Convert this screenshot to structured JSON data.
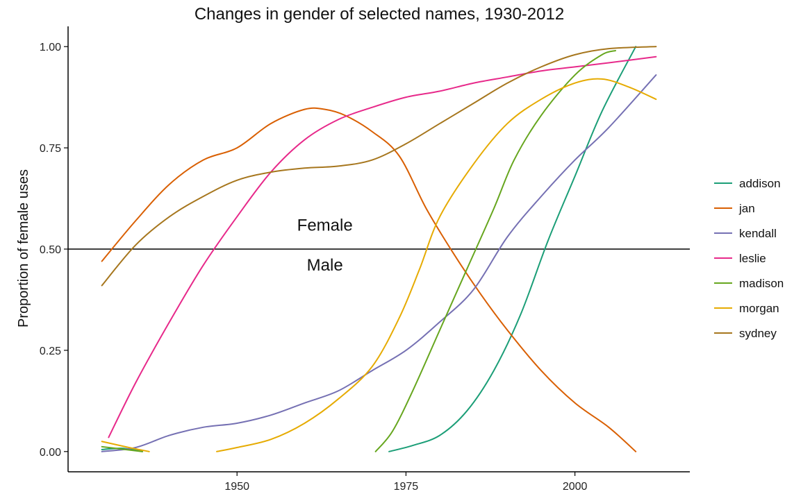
{
  "chart_data": {
    "type": "line",
    "title": "Changes in gender of selected names, 1930-2012",
    "xlabel": "",
    "ylabel": "Proportion of female uses",
    "xlim": [
      1925,
      2017
    ],
    "ylim": [
      -0.05,
      1.05
    ],
    "x_ticks": [
      1950,
      1975,
      2000
    ],
    "x_tick_labels": [
      "1950",
      "1975",
      "2000"
    ],
    "y_ticks": [
      0,
      0.25,
      0.5,
      0.75,
      1.0
    ],
    "y_tick_labels": [
      "0.00",
      "0.25",
      "0.50",
      "0.75",
      "1.00"
    ],
    "grid": false,
    "legend_position": "right",
    "reference_line": {
      "y": 0.5
    },
    "annotations": [
      {
        "text": "Female",
        "x": 1963,
        "y": 0.545
      },
      {
        "text": "Male",
        "x": 1963,
        "y": 0.447
      }
    ],
    "series": [
      {
        "name": "addison",
        "color": "#1b9e77",
        "segments": [
          [
            [
              1930,
              0.005
            ],
            [
              1933,
              0.008
            ],
            [
              1936,
              0.0
            ]
          ],
          [
            [
              1972.5,
              0.0
            ],
            [
              1976,
              0.015
            ],
            [
              1980,
              0.04
            ],
            [
              1984,
              0.1
            ],
            [
              1988,
              0.2
            ],
            [
              1992,
              0.34
            ],
            [
              1996,
              0.52
            ],
            [
              2000,
              0.68
            ],
            [
              2004,
              0.84
            ],
            [
              2009,
              1.0
            ]
          ]
        ]
      },
      {
        "name": "jan",
        "color": "#d95f02",
        "segments": [
          [
            [
              1930,
              0.47
            ],
            [
              1935,
              0.57
            ],
            [
              1940,
              0.66
            ],
            [
              1945,
              0.72
            ],
            [
              1950,
              0.75
            ],
            [
              1955,
              0.81
            ],
            [
              1960,
              0.845
            ],
            [
              1963,
              0.845
            ],
            [
              1966,
              0.83
            ],
            [
              1970,
              0.79
            ],
            [
              1974,
              0.73
            ],
            [
              1978,
              0.6
            ],
            [
              1982,
              0.49
            ],
            [
              1986,
              0.39
            ],
            [
              1990,
              0.3
            ],
            [
              1995,
              0.2
            ],
            [
              2000,
              0.12
            ],
            [
              2005,
              0.06
            ],
            [
              2009,
              0.0
            ]
          ]
        ]
      },
      {
        "name": "kendall",
        "color": "#7570b3",
        "segments": [
          [
            [
              1930,
              0.0
            ],
            [
              1935,
              0.01
            ],
            [
              1940,
              0.04
            ],
            [
              1945,
              0.06
            ],
            [
              1950,
              0.07
            ],
            [
              1955,
              0.09
            ],
            [
              1960,
              0.12
            ],
            [
              1965,
              0.15
            ],
            [
              1970,
              0.2
            ],
            [
              1975,
              0.25
            ],
            [
              1980,
              0.32
            ],
            [
              1985,
              0.4
            ],
            [
              1990,
              0.53
            ],
            [
              1995,
              0.63
            ],
            [
              2000,
              0.72
            ],
            [
              2005,
              0.8
            ],
            [
              2012,
              0.93
            ]
          ]
        ]
      },
      {
        "name": "leslie",
        "color": "#e7298a",
        "segments": [
          [
            [
              1931,
              0.035
            ],
            [
              1935,
              0.17
            ],
            [
              1940,
              0.32
            ],
            [
              1945,
              0.46
            ],
            [
              1950,
              0.58
            ],
            [
              1955,
              0.69
            ],
            [
              1960,
              0.77
            ],
            [
              1965,
              0.82
            ],
            [
              1970,
              0.85
            ],
            [
              1975,
              0.875
            ],
            [
              1980,
              0.89
            ],
            [
              1985,
              0.91
            ],
            [
              1990,
              0.925
            ],
            [
              1995,
              0.94
            ],
            [
              2000,
              0.95
            ],
            [
              2005,
              0.96
            ],
            [
              2012,
              0.975
            ]
          ]
        ]
      },
      {
        "name": "madison",
        "color": "#66a61e",
        "segments": [
          [
            [
              1930,
              0.012
            ],
            [
              1933,
              0.006
            ],
            [
              1936,
              0.0
            ]
          ],
          [
            [
              1970.5,
              0.0
            ],
            [
              1973,
              0.05
            ],
            [
              1976,
              0.15
            ],
            [
              1980,
              0.3
            ],
            [
              1984,
              0.45
            ],
            [
              1988,
              0.6
            ],
            [
              1991,
              0.72
            ],
            [
              1995,
              0.83
            ],
            [
              2000,
              0.93
            ],
            [
              2004,
              0.98
            ],
            [
              2006,
              0.99
            ]
          ]
        ]
      },
      {
        "name": "morgan",
        "color": "#e6ab02",
        "segments": [
          [
            [
              1930,
              0.025
            ],
            [
              1934,
              0.01
            ],
            [
              1937,
              0.0
            ]
          ],
          [
            [
              1947,
              0.0
            ],
            [
              1950,
              0.01
            ],
            [
              1955,
              0.03
            ],
            [
              1960,
              0.07
            ],
            [
              1965,
              0.13
            ],
            [
              1970,
              0.21
            ],
            [
              1974,
              0.33
            ],
            [
              1977,
              0.45
            ],
            [
              1980,
              0.58
            ],
            [
              1985,
              0.71
            ],
            [
              1990,
              0.81
            ],
            [
              1995,
              0.87
            ],
            [
              2000,
              0.91
            ],
            [
              2004,
              0.92
            ],
            [
              2008,
              0.9
            ],
            [
              2012,
              0.87
            ]
          ]
        ]
      },
      {
        "name": "sydney",
        "color": "#a6761d",
        "segments": [
          [
            [
              1930,
              0.41
            ],
            [
              1935,
              0.51
            ],
            [
              1940,
              0.58
            ],
            [
              1945,
              0.63
            ],
            [
              1950,
              0.67
            ],
            [
              1955,
              0.69
            ],
            [
              1960,
              0.7
            ],
            [
              1965,
              0.705
            ],
            [
              1970,
              0.72
            ],
            [
              1975,
              0.76
            ],
            [
              1980,
              0.81
            ],
            [
              1985,
              0.86
            ],
            [
              1990,
              0.91
            ],
            [
              1995,
              0.95
            ],
            [
              2000,
              0.98
            ],
            [
              2005,
              0.995
            ],
            [
              2012,
              1.0
            ]
          ]
        ]
      }
    ]
  }
}
